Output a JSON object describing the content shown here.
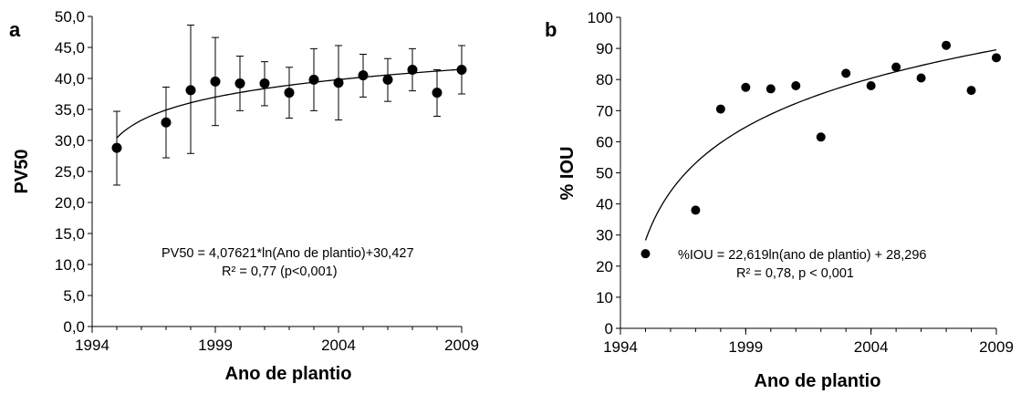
{
  "chart_data": [
    {
      "panel_label": "a",
      "type": "scatter",
      "xlabel": "Ano de plantio",
      "ylabel": "PV50",
      "xlim": [
        1994,
        2009
      ],
      "ylim": [
        0,
        50
      ],
      "x_ticks": [
        "1994",
        "1999",
        "2004",
        "2009"
      ],
      "y_ticks": [
        "0,0",
        "5,0",
        "10,0",
        "15,0",
        "20,0",
        "25,0",
        "30,0",
        "35,0",
        "40,0",
        "45,0",
        "50,0"
      ],
      "grid": false,
      "error_bars": true,
      "series": [
        {
          "x": [
            1995,
            1997,
            1998,
            1999,
            2000,
            2001,
            2002,
            2003,
            2004,
            2005,
            2006,
            2007,
            2008,
            2009
          ],
          "y": [
            28.8,
            32.9,
            38.1,
            39.5,
            39.2,
            39.2,
            37.7,
            39.8,
            39.3,
            40.5,
            39.8,
            41.4,
            37.7,
            41.4
          ],
          "err_low": [
            22.8,
            27.2,
            27.9,
            32.4,
            34.8,
            35.6,
            33.6,
            34.8,
            33.3,
            37.0,
            36.3,
            38.0,
            33.9,
            37.5
          ],
          "err_high": [
            34.7,
            38.6,
            48.6,
            46.6,
            43.6,
            42.7,
            41.8,
            44.8,
            45.3,
            43.9,
            43.2,
            44.8,
            41.4,
            45.3
          ]
        }
      ],
      "trend": {
        "a": 4.07621,
        "b": 30.427,
        "x_start": 1995,
        "x_end": 2009
      },
      "annotation_line1": "PV50  = 4,07621*ln(Ano de plantio)+30,427",
      "annotation_line2": "R² = 0,77  (p<0,001)"
    },
    {
      "panel_label": "b",
      "type": "scatter",
      "xlabel": "Ano de plantio",
      "ylabel": "% IOU",
      "xlim": [
        1994,
        2009
      ],
      "ylim": [
        0,
        100
      ],
      "x_ticks": [
        "1994",
        "1999",
        "2004",
        "2009"
      ],
      "y_ticks": [
        "0",
        "10",
        "20",
        "30",
        "40",
        "50",
        "60",
        "70",
        "80",
        "90",
        "100"
      ],
      "grid": false,
      "error_bars": false,
      "series": [
        {
          "x": [
            1995,
            1997,
            1998,
            1999,
            2000,
            2001,
            2002,
            2003,
            2004,
            2005,
            2006,
            2007,
            2008,
            2009
          ],
          "y": [
            24,
            38,
            70.5,
            77.5,
            77,
            78,
            61.5,
            82,
            78,
            84,
            80.5,
            91,
            76.5,
            87
          ]
        }
      ],
      "trend": {
        "a": 22.619,
        "b": 28.296,
        "x_start": 1995,
        "x_end": 2009
      },
      "annotation_line1": "%IOU = 22,619ln(ano de plantio) + 28,296",
      "annotation_line2": "R² = 0,78,  p < 0,001"
    }
  ]
}
